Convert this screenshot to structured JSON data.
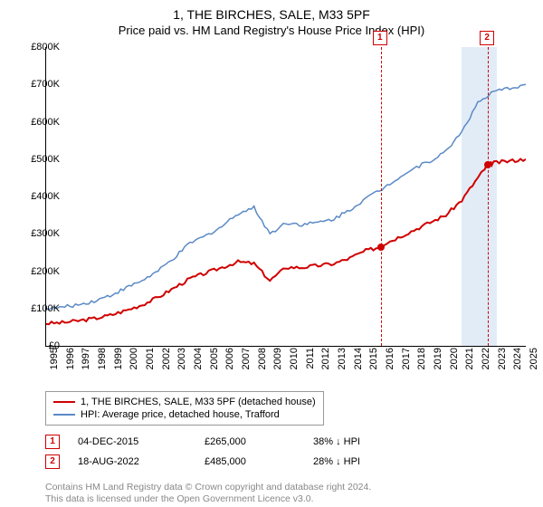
{
  "title": "1, THE BIRCHES, SALE, M33 5PF",
  "subtitle": "Price paid vs. HM Land Registry's House Price Index (HPI)",
  "chart": {
    "type": "line",
    "xlim": [
      1995,
      2025
    ],
    "ylim": [
      0,
      800000
    ],
    "ytick_step": 100000,
    "y_prefix": "£",
    "y_suffix": "K",
    "x_years": [
      1995,
      1996,
      1997,
      1998,
      1999,
      2000,
      2001,
      2002,
      2003,
      2004,
      2005,
      2006,
      2007,
      2008,
      2009,
      2010,
      2011,
      2012,
      2013,
      2014,
      2015,
      2016,
      2017,
      2018,
      2019,
      2020,
      2021,
      2022,
      2023,
      2024,
      2025
    ],
    "background_color": "#ffffff",
    "vline_color": "#d00000",
    "band_color": "#c5d9f0",
    "band_range": [
      2021.0,
      2023.2
    ],
    "vlines": [
      2015.93,
      2022.63
    ],
    "marker_labels": [
      "1",
      "2"
    ],
    "series": [
      {
        "name": "red",
        "color": "#d00000",
        "width": 2,
        "label": "1, THE BIRCHES, SALE, M33 5PF (detached house)",
        "points": [
          [
            1995,
            60000
          ],
          [
            1996,
            62000
          ],
          [
            1997,
            67000
          ],
          [
            1998,
            73000
          ],
          [
            1999,
            82000
          ],
          [
            2000,
            95000
          ],
          [
            2001,
            110000
          ],
          [
            2002,
            130000
          ],
          [
            2003,
            155000
          ],
          [
            2004,
            180000
          ],
          [
            2005,
            195000
          ],
          [
            2006,
            210000
          ],
          [
            2007,
            225000
          ],
          [
            2008,
            220000
          ],
          [
            2009,
            175000
          ],
          [
            2010,
            210000
          ],
          [
            2011,
            210000
          ],
          [
            2012,
            215000
          ],
          [
            2013,
            220000
          ],
          [
            2014,
            235000
          ],
          [
            2015,
            255000
          ],
          [
            2015.93,
            265000
          ],
          [
            2016,
            270000
          ],
          [
            2017,
            290000
          ],
          [
            2018,
            310000
          ],
          [
            2019,
            330000
          ],
          [
            2020,
            350000
          ],
          [
            2021,
            390000
          ],
          [
            2022,
            450000
          ],
          [
            2022.63,
            485000
          ],
          [
            2023,
            490000
          ],
          [
            2024,
            495000
          ],
          [
            2025,
            500000
          ]
        ]
      },
      {
        "name": "blue",
        "color": "#5b8ac6",
        "width": 1.5,
        "label": "HPI: Average price, detached house, Trafford",
        "points": [
          [
            1995,
            100000
          ],
          [
            1996,
            103000
          ],
          [
            1997,
            110000
          ],
          [
            1998,
            120000
          ],
          [
            1999,
            135000
          ],
          [
            2000,
            155000
          ],
          [
            2001,
            175000
          ],
          [
            2002,
            200000
          ],
          [
            2003,
            235000
          ],
          [
            2004,
            275000
          ],
          [
            2005,
            295000
          ],
          [
            2006,
            320000
          ],
          [
            2007,
            355000
          ],
          [
            2008,
            370000
          ],
          [
            2009,
            300000
          ],
          [
            2010,
            330000
          ],
          [
            2011,
            325000
          ],
          [
            2012,
            330000
          ],
          [
            2013,
            340000
          ],
          [
            2014,
            365000
          ],
          [
            2015,
            395000
          ],
          [
            2016,
            420000
          ],
          [
            2017,
            450000
          ],
          [
            2018,
            475000
          ],
          [
            2019,
            495000
          ],
          [
            2020,
            520000
          ],
          [
            2021,
            575000
          ],
          [
            2022,
            650000
          ],
          [
            2023,
            680000
          ],
          [
            2024,
            690000
          ],
          [
            2025,
            700000
          ]
        ]
      }
    ],
    "sale_markers": [
      {
        "x": 2015.93,
        "y": 265000
      },
      {
        "x": 2022.63,
        "y": 485000
      }
    ]
  },
  "legend": {
    "items": [
      {
        "color": "#d00000",
        "label": "1, THE BIRCHES, SALE, M33 5PF (detached house)"
      },
      {
        "color": "#5b8ac6",
        "label": "HPI: Average price, detached house, Trafford"
      }
    ]
  },
  "sales": [
    {
      "marker": "1",
      "date": "04-DEC-2015",
      "price": "£265,000",
      "pct": "38% ↓ HPI"
    },
    {
      "marker": "2",
      "date": "18-AUG-2022",
      "price": "£485,000",
      "pct": "28% ↓ HPI"
    }
  ],
  "footer1": "Contains HM Land Registry data © Crown copyright and database right 2024.",
  "footer2": "This data is licensed under the Open Government Licence v3.0."
}
